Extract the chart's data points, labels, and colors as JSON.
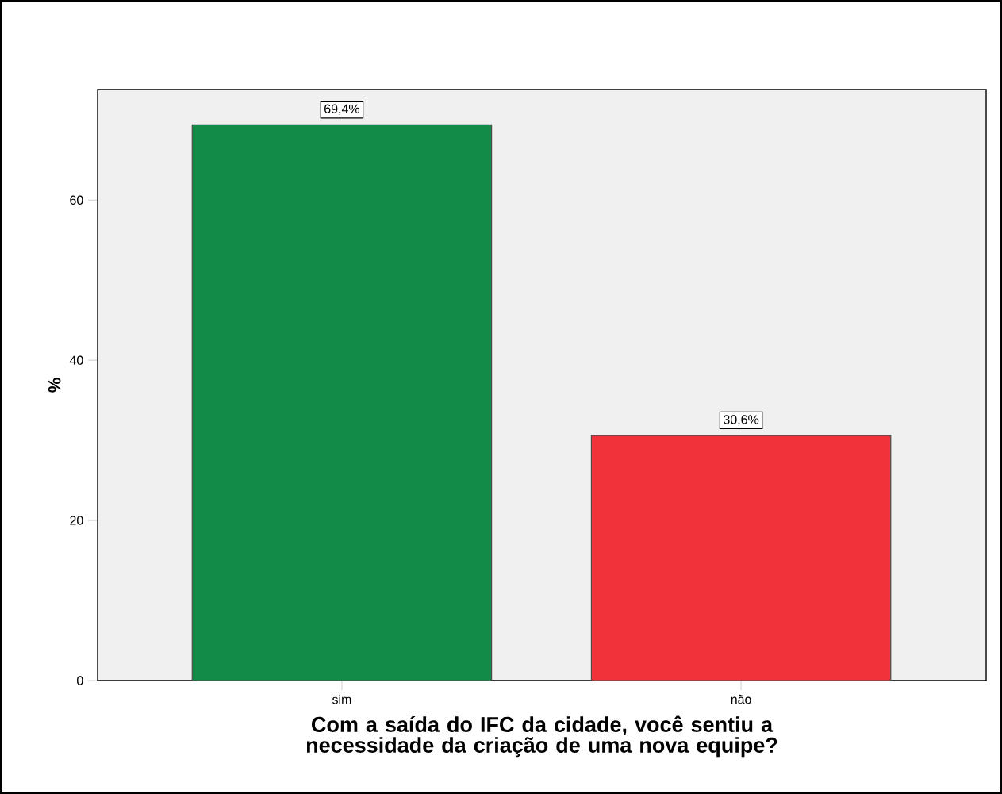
{
  "chart_data": {
    "type": "bar",
    "xlabel": "Com a saída do IFC da cidade, você sentiu a necessidade da criação de uma nova equipe?",
    "ylabel": "%",
    "categories": [
      "sim",
      "não"
    ],
    "values": [
      69.4,
      30.6
    ],
    "colors": [
      "#118b46",
      "#f0333b"
    ],
    "value_labels": [
      "69,4%",
      "30,6%"
    ],
    "ylim": [
      0,
      73.8
    ],
    "yticks": [
      0,
      20,
      40,
      60
    ],
    "grid": false
  }
}
